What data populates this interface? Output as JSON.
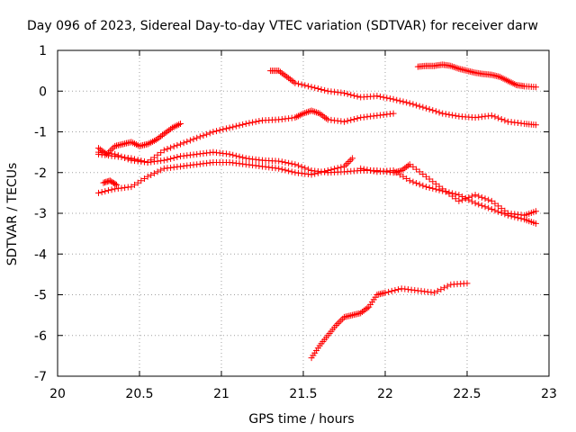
{
  "chart_data": {
    "type": "scatter",
    "title": "Day 096 of 2023, Sidereal Day-to-day VTEC variation (SDTVAR) for receiver darw",
    "xlabel": "GPS time / hours",
    "ylabel": "SDTVAR / TECUs",
    "xlim": [
      20,
      23
    ],
    "ylim": [
      -7,
      1
    ],
    "xticks": [
      "20",
      "20.5",
      "21",
      "21.5",
      "22",
      "22.5",
      "23"
    ],
    "yticks": [
      "1",
      "0",
      "-1",
      "-2",
      "-3",
      "-4",
      "-5",
      "-6",
      "-7"
    ],
    "grid": true,
    "legend": "none",
    "marker": "plus",
    "color": "#ff0000",
    "series": [
      {
        "x": [
          20.25,
          20.3,
          20.35,
          20.4,
          20.45,
          20.5,
          20.55,
          20.6,
          20.65,
          20.7,
          20.75
        ],
        "y": [
          -1.4,
          -1.55,
          -1.35,
          -1.3,
          -1.25,
          -1.35,
          -1.3,
          -1.2,
          -1.05,
          -0.9,
          -0.8
        ]
      },
      {
        "x": [
          20.25,
          20.35,
          20.45,
          20.55,
          20.65,
          20.75,
          20.85,
          20.95,
          21.05,
          21.15,
          21.25,
          21.35,
          21.45,
          21.5,
          21.55,
          21.6,
          21.65,
          21.75,
          21.85,
          21.95,
          22.05
        ],
        "y": [
          -1.5,
          -1.55,
          -1.7,
          -1.75,
          -1.45,
          -1.3,
          -1.15,
          -1.0,
          -0.9,
          -0.8,
          -0.72,
          -0.7,
          -0.65,
          -0.55,
          -0.48,
          -0.55,
          -0.7,
          -0.75,
          -0.65,
          -0.6,
          -0.55
        ]
      },
      {
        "x": [
          20.25,
          20.35,
          20.45,
          20.55,
          20.65,
          20.75,
          20.85,
          20.95,
          21.05,
          21.15,
          21.25,
          21.35,
          21.45,
          21.55,
          21.65,
          21.75,
          21.85,
          21.95,
          22.05,
          22.1,
          22.15,
          22.25,
          22.35,
          22.45,
          22.55,
          22.65,
          22.75,
          22.85,
          22.92
        ],
        "y": [
          -1.55,
          -1.6,
          -1.65,
          -1.75,
          -1.7,
          -1.6,
          -1.55,
          -1.5,
          -1.55,
          -1.65,
          -1.7,
          -1.72,
          -1.8,
          -1.95,
          -2.0,
          -1.98,
          -1.95,
          -1.95,
          -2.0,
          -1.95,
          -1.8,
          -2.1,
          -2.4,
          -2.7,
          -2.55,
          -2.7,
          -3.0,
          -3.05,
          -2.95
        ]
      },
      {
        "x": [
          20.25,
          20.35,
          20.45,
          20.55,
          20.65,
          20.75,
          20.85,
          20.95,
          21.05,
          21.15,
          21.25,
          21.35,
          21.45,
          21.55,
          21.65,
          21.75,
          21.8
        ],
        "y": [
          -2.5,
          -2.4,
          -2.35,
          -2.1,
          -1.9,
          -1.85,
          -1.8,
          -1.75,
          -1.75,
          -1.8,
          -1.85,
          -1.9,
          -2.0,
          -2.05,
          -1.95,
          -1.85,
          -1.65
        ]
      },
      {
        "x": [
          20.28,
          20.32,
          20.36
        ],
        "y": [
          -2.25,
          -2.2,
          -2.3
        ]
      },
      {
        "x": [
          21.85,
          21.95,
          22.05,
          22.15,
          22.25,
          22.35,
          22.45,
          22.55,
          22.65,
          22.75,
          22.85,
          22.92
        ],
        "y": [
          -1.9,
          -1.98,
          -1.95,
          -2.2,
          -2.35,
          -2.45,
          -2.55,
          -2.75,
          -2.9,
          -3.05,
          -3.15,
          -3.25
        ]
      },
      {
        "x": [
          21.3,
          21.35,
          21.4,
          21.45,
          21.55,
          21.65,
          21.75,
          21.85,
          21.95,
          22.05,
          22.15,
          22.25,
          22.35,
          22.45,
          22.55,
          22.65,
          22.75,
          22.85,
          22.92
        ],
        "y": [
          0.5,
          0.5,
          0.35,
          0.2,
          0.1,
          0.0,
          -0.05,
          -0.15,
          -0.12,
          -0.2,
          -0.3,
          -0.42,
          -0.55,
          -0.62,
          -0.65,
          -0.6,
          -0.75,
          -0.8,
          -0.83
        ]
      },
      {
        "x": [
          22.2,
          22.25,
          22.3,
          22.35,
          22.4,
          22.45,
          22.5,
          22.55,
          22.6,
          22.65,
          22.7,
          22.75,
          22.8,
          22.85,
          22.92
        ],
        "y": [
          0.6,
          0.62,
          0.62,
          0.65,
          0.62,
          0.55,
          0.5,
          0.45,
          0.42,
          0.4,
          0.35,
          0.25,
          0.15,
          0.12,
          0.1
        ]
      },
      {
        "x": [
          21.55,
          21.6,
          21.65,
          21.7,
          21.75,
          21.8,
          21.85,
          21.9,
          21.95,
          22.0,
          22.1,
          22.2,
          22.3,
          22.4,
          22.5
        ],
        "y": [
          -6.55,
          -6.25,
          -6.0,
          -5.75,
          -5.55,
          -5.5,
          -5.45,
          -5.3,
          -5.0,
          -4.95,
          -4.85,
          -4.9,
          -4.95,
          -4.75,
          -4.72
        ]
      }
    ]
  }
}
